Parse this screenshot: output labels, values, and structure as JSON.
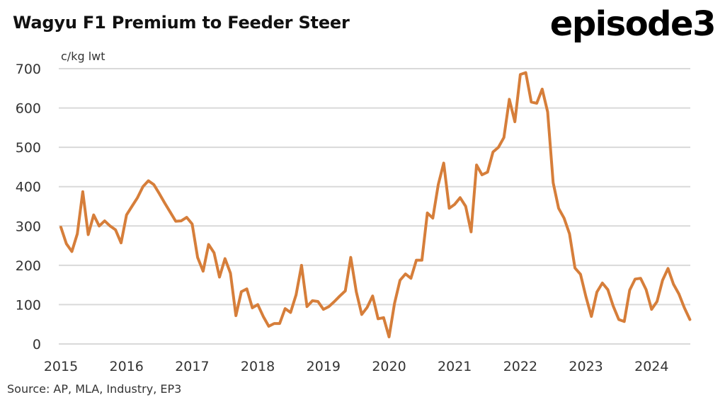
{
  "header": {
    "title": "Wagyu F1 Premium to Feeder Steer",
    "logo": "episode3"
  },
  "footer": {
    "source": "Source: AP, MLA, Industry, EP3"
  },
  "chart_data": {
    "type": "line",
    "title": "Wagyu F1 Premium to Feeder Steer",
    "xlabel": "",
    "ylabel": "c/kg lwt",
    "ylim": [
      0,
      700
    ],
    "yticks": [
      0,
      100,
      200,
      300,
      400,
      500,
      600,
      700
    ],
    "xlim": [
      2015.0,
      2024.67
    ],
    "xticks": [
      "2015",
      "2016",
      "2017",
      "2018",
      "2019",
      "2020",
      "2021",
      "2022",
      "2023",
      "2024"
    ],
    "grid": true,
    "legend": "none",
    "colors": {
      "series": "#d67e3a",
      "grid": "#d9d9d9"
    },
    "series": [
      {
        "name": "Wagyu F1 Premium",
        "frequency": "monthly",
        "start": "2015-01",
        "values": [
          297,
          255,
          235,
          280,
          387,
          278,
          328,
          300,
          313,
          300,
          290,
          257,
          328,
          350,
          372,
          400,
          415,
          405,
          382,
          358,
          335,
          312,
          313,
          322,
          305,
          220,
          185,
          253,
          232,
          170,
          217,
          180,
          72,
          133,
          140,
          92,
          100,
          70,
          45,
          52,
          52,
          90,
          80,
          125,
          200,
          95,
          110,
          108,
          88,
          95,
          108,
          122,
          135,
          220,
          133,
          75,
          93,
          122,
          64,
          67,
          18,
          103,
          162,
          178,
          167,
          213,
          213,
          333,
          320,
          405,
          460,
          345,
          355,
          372,
          350,
          285,
          455,
          430,
          437,
          488,
          500,
          525,
          622,
          565,
          685,
          690,
          615,
          612,
          648,
          590,
          410,
          345,
          320,
          280,
          193,
          177,
          120,
          70,
          132,
          155,
          138,
          96,
          62,
          57,
          137,
          165,
          167,
          138,
          88,
          108,
          162,
          192,
          152,
          127,
          92,
          62
        ]
      }
    ]
  }
}
